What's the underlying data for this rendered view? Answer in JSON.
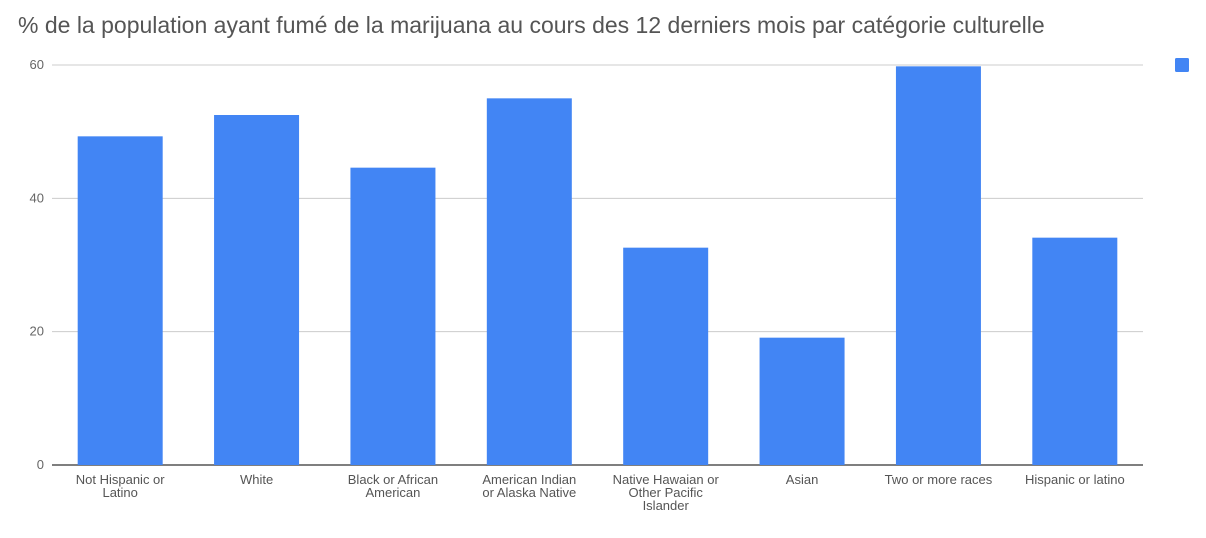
{
  "chart_data": {
    "type": "bar",
    "title": "% de la population ayant fumé de la marijuana au cours des 12 derniers mois par catégorie culturelle",
    "categories": [
      "Not Hispanic or Latino",
      "White",
      "Black or African American",
      "American Indian or Alaska Native",
      "Native Hawaiian or Other Pacific Islander",
      "Asian",
      "Two or more races",
      "Hispanic or latino"
    ],
    "category_lines": [
      [
        "Not Hispanic or",
        "Latino"
      ],
      [
        "White"
      ],
      [
        "Black or African",
        "American"
      ],
      [
        "American Indian",
        "or Alaska Native"
      ],
      [
        "Native Hawaian or",
        "Other Pacific",
        "Islander"
      ],
      [
        "Asian"
      ],
      [
        "Two or more races"
      ],
      [
        "Hispanic or latino"
      ]
    ],
    "series": [
      {
        "values": [
          49.3,
          52.5,
          44.6,
          55.0,
          32.6,
          19.1,
          59.8,
          34.1
        ]
      }
    ],
    "ylim": [
      0,
      60
    ],
    "yticks": [
      "0",
      "20",
      "40",
      "60"
    ],
    "grid": true,
    "legend": "right",
    "colors": {
      "bar": "#4285f4",
      "grid": "#cccccc",
      "axis": "#333333"
    }
  }
}
